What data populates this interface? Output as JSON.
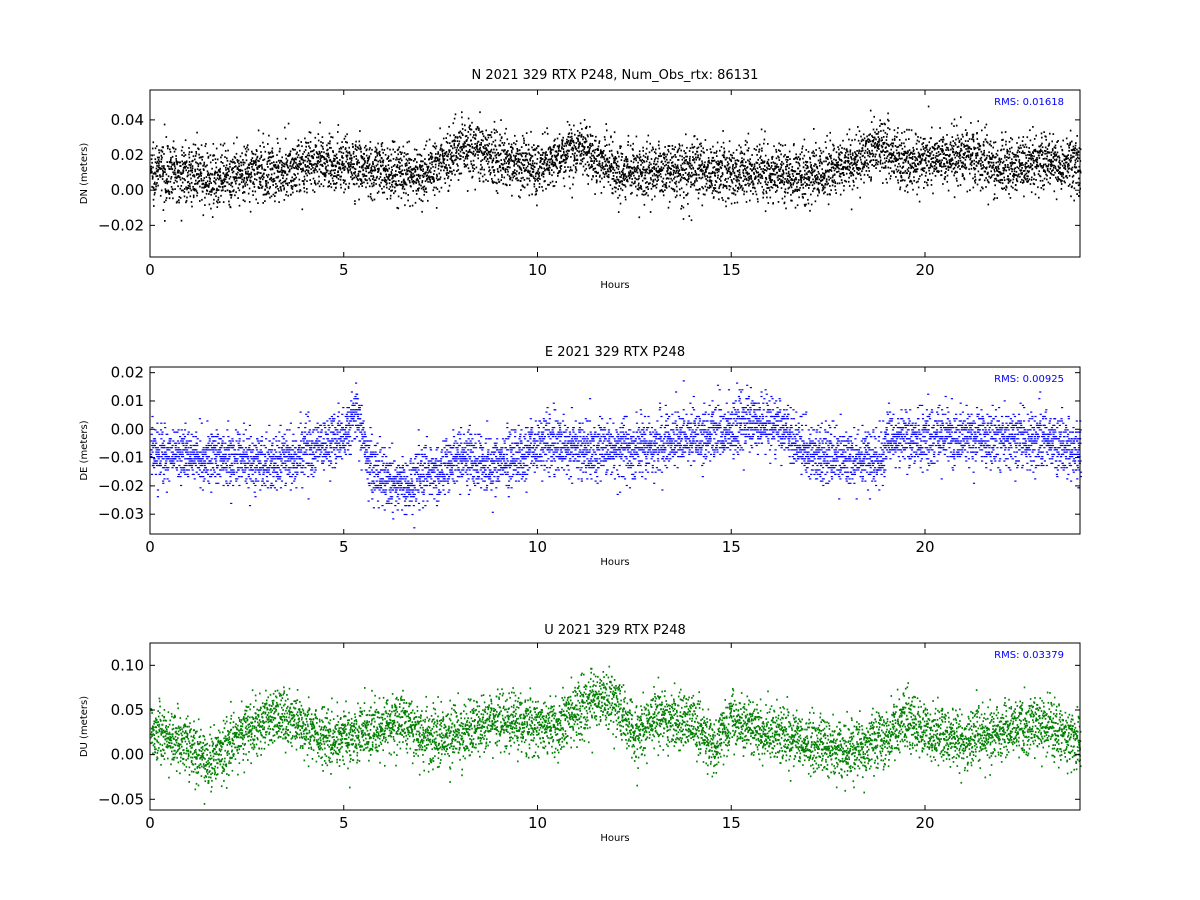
{
  "chart_data": [
    {
      "type": "scatter",
      "title": "N 2021 329 RTX  P248, Num_Obs_rtx: 86131",
      "xlabel": "Hours",
      "ylabel": "DN (meters)",
      "xlim": [
        0,
        24
      ],
      "ylim": [
        -0.038,
        0.057
      ],
      "xticks": [
        0,
        5,
        10,
        15,
        20
      ],
      "xtick_labels": [
        "0",
        "5",
        "10",
        "15",
        "20"
      ],
      "yticks": [
        -0.02,
        0.0,
        0.02,
        0.04
      ],
      "ytick_labels": [
        "−0.02",
        "0.00",
        "0.02",
        "0.04"
      ],
      "grid": false,
      "color": "#000000",
      "series": [
        {
          "x": [
            0,
            1,
            2,
            2.5,
            3,
            4,
            5,
            6,
            6.5,
            7,
            8,
            8.5,
            9,
            10,
            11,
            11.2,
            12,
            13,
            14,
            15,
            16,
            17,
            18,
            18.8,
            19.5,
            20,
            21,
            22,
            23,
            24
          ],
          "y": [
            0.012,
            0.01,
            0.006,
            0.012,
            0.01,
            0.015,
            0.016,
            0.012,
            0.01,
            0.008,
            0.025,
            0.024,
            0.017,
            0.013,
            0.023,
            0.024,
            0.011,
            0.012,
            0.012,
            0.01,
            0.011,
            0.008,
            0.015,
            0.026,
            0.016,
            0.018,
            0.022,
            0.012,
            0.016,
            0.014
          ]
        }
      ],
      "annotation": "RMS:  0.01618",
      "annotation_color": "#0000ff"
    },
    {
      "type": "scatter",
      "title": "E 2021 329 RTX  P248",
      "xlabel": "Hours",
      "ylabel": "DE (meters)",
      "xlim": [
        0,
        24
      ],
      "ylim": [
        -0.037,
        0.022
      ],
      "xticks": [
        0,
        5,
        10,
        15,
        20
      ],
      "xtick_labels": [
        "0",
        "5",
        "10",
        "15",
        "20"
      ],
      "yticks": [
        -0.03,
        -0.02,
        -0.01,
        0.0,
        0.01,
        0.02
      ],
      "ytick_labels": [
        "−0.03",
        "−0.02",
        "−0.01",
        "0.00",
        "0.01",
        "0.02"
      ],
      "grid": false,
      "color": "#0000ff",
      "series": [
        {
          "x": [
            0,
            1,
            2,
            3,
            4,
            5,
            5.3,
            5.6,
            6,
            6.7,
            7,
            8,
            9,
            10,
            11,
            12,
            13,
            14,
            15,
            15.5,
            16,
            17,
            18,
            18.8,
            19,
            20,
            21,
            22,
            23,
            24
          ],
          "y": [
            -0.008,
            -0.009,
            -0.01,
            -0.012,
            -0.008,
            -0.002,
            0.008,
            -0.012,
            -0.017,
            -0.02,
            -0.016,
            -0.01,
            -0.012,
            -0.006,
            -0.007,
            -0.007,
            -0.006,
            -0.002,
            0.0,
            0.003,
            0.002,
            -0.008,
            -0.01,
            -0.011,
            -0.004,
            -0.003,
            -0.002,
            -0.004,
            -0.003,
            -0.008
          ]
        }
      ],
      "annotation": "RMS:  0.00925",
      "annotation_color": "#0000ff"
    },
    {
      "type": "scatter",
      "title": "U 2021 329 RTX  P248",
      "xlabel": "Hours",
      "ylabel": "DU (meters)",
      "xlim": [
        0,
        24
      ],
      "ylim": [
        -0.062,
        0.125
      ],
      "xticks": [
        0,
        5,
        10,
        15,
        20
      ],
      "xtick_labels": [
        "0",
        "5",
        "10",
        "15",
        "20"
      ],
      "yticks": [
        -0.05,
        0.0,
        0.05,
        0.1
      ],
      "ytick_labels": [
        "−0.05",
        "0.00",
        "0.05",
        "0.10"
      ],
      "grid": false,
      "color": "#008000",
      "series": [
        {
          "x": [
            0,
            0.5,
            1,
            1.5,
            2,
            2.5,
            3,
            3.5,
            4,
            4.5,
            5,
            6,
            6.5,
            7,
            8,
            9,
            10,
            10.5,
            11,
            11.5,
            12,
            12.5,
            13,
            14,
            14.5,
            15,
            16,
            17,
            17.5,
            18,
            19,
            19.5,
            20,
            21,
            22,
            23,
            24
          ],
          "y": [
            0.03,
            0.02,
            0.01,
            -0.005,
            0.01,
            0.03,
            0.04,
            0.04,
            0.035,
            0.02,
            0.02,
            0.03,
            0.04,
            0.02,
            0.025,
            0.04,
            0.035,
            0.03,
            0.05,
            0.065,
            0.06,
            0.02,
            0.045,
            0.035,
            0.01,
            0.04,
            0.025,
            0.015,
            0.01,
            0.005,
            0.02,
            0.04,
            0.025,
            0.015,
            0.03,
            0.035,
            0.02
          ]
        }
      ],
      "annotation": "RMS:  0.03379",
      "annotation_color": "#0000ff"
    }
  ]
}
